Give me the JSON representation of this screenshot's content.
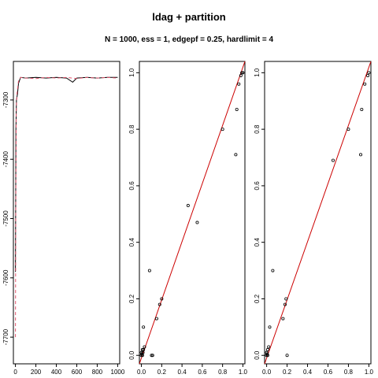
{
  "title": "ldag + partition",
  "subtitle": "N = 1000, ess = 1, edgepf = 0.25, hardlimit = 4",
  "colors": {
    "trace1": "#000000",
    "trace2": "#df536b",
    "fit": "#cc0000",
    "points": "#000000"
  },
  "chart_data": [
    {
      "type": "line",
      "panel": "trace",
      "xlim": [
        -20,
        1020
      ],
      "ylim": [
        -7745,
        -7235
      ],
      "xticks": [
        0,
        200,
        400,
        600,
        800,
        1000
      ],
      "yticks": [
        -7700,
        -7600,
        -7500,
        -7400,
        -7300
      ],
      "grid": false,
      "series": [
        {
          "style": "solid",
          "points": [
            [
              0,
              -7590
            ],
            [
              2,
              -7480
            ],
            [
              5,
              -7350
            ],
            [
              10,
              -7300
            ],
            [
              20,
              -7290
            ],
            [
              30,
              -7272
            ],
            [
              50,
              -7262
            ],
            [
              100,
              -7263
            ],
            [
              200,
              -7262
            ],
            [
              300,
              -7263
            ],
            [
              400,
              -7262
            ],
            [
              500,
              -7263
            ],
            [
              560,
              -7270
            ],
            [
              600,
              -7263
            ],
            [
              700,
              -7262
            ],
            [
              800,
              -7263
            ],
            [
              900,
              -7262
            ],
            [
              1000,
              -7262
            ]
          ]
        },
        {
          "style": "dashed",
          "points": [
            [
              0,
              -7700
            ],
            [
              3,
              -7500
            ],
            [
              8,
              -7320
            ],
            [
              15,
              -7290
            ],
            [
              30,
              -7268
            ],
            [
              50,
              -7262
            ],
            [
              100,
              -7263
            ],
            [
              200,
              -7264
            ],
            [
              300,
              -7262
            ],
            [
              400,
              -7263
            ],
            [
              500,
              -7262
            ],
            [
              600,
              -7264
            ],
            [
              700,
              -7262
            ],
            [
              800,
              -7263
            ],
            [
              900,
              -7262
            ],
            [
              1000,
              -7263
            ]
          ]
        }
      ]
    },
    {
      "type": "scatter",
      "panel": "comparison-1",
      "xlim": [
        -0.02,
        1.02
      ],
      "ylim": [
        -0.03,
        1.04
      ],
      "xticks": [
        0.0,
        0.2,
        0.4,
        0.6,
        0.8,
        1.0
      ],
      "yticks": [
        0.0,
        0.2,
        0.4,
        0.6,
        0.8,
        1.0
      ],
      "xtick_labels": [
        "0.0",
        "0.2",
        "0.4",
        "0.6",
        "0.8",
        "1.0"
      ],
      "ytick_labels": [
        "0.0",
        "0.2",
        "0.4",
        "0.6",
        "0.8",
        "1.0"
      ],
      "reference_line": [
        [
          -0.02,
          -0.03
        ],
        [
          1.02,
          1.04
        ]
      ],
      "points": [
        [
          0,
          0
        ],
        [
          0.005,
          0.005
        ],
        [
          0.01,
          0.0
        ],
        [
          0.0,
          0.01
        ],
        [
          0.015,
          0.01
        ],
        [
          0.01,
          0.02
        ],
        [
          0.02,
          0.02
        ],
        [
          0.03,
          0.03
        ],
        [
          0.02,
          0.1
        ],
        [
          0.08,
          0.3
        ],
        [
          0.1,
          0.0
        ],
        [
          0.11,
          0.0
        ],
        [
          0.15,
          0.13
        ],
        [
          0.18,
          0.18
        ],
        [
          0.2,
          0.2
        ],
        [
          0.46,
          0.53
        ],
        [
          0.55,
          0.47
        ],
        [
          0.8,
          0.8
        ],
        [
          0.93,
          0.71
        ],
        [
          0.94,
          0.87
        ],
        [
          0.96,
          0.96
        ],
        [
          0.98,
          0.99
        ],
        [
          0.99,
          1.0
        ],
        [
          1.0,
          1.0
        ]
      ]
    },
    {
      "type": "scatter",
      "panel": "comparison-2",
      "xlim": [
        -0.02,
        1.02
      ],
      "ylim": [
        -0.03,
        1.04
      ],
      "xticks": [
        0.0,
        0.2,
        0.4,
        0.6,
        0.8,
        1.0
      ],
      "yticks": [
        0.0,
        0.2,
        0.4,
        0.6,
        0.8,
        1.0
      ],
      "xtick_labels": [
        "0.0",
        "0.2",
        "0.4",
        "0.6",
        "0.8",
        "1.0"
      ],
      "ytick_labels": [
        "0.0",
        "0.2",
        "0.4",
        "0.6",
        "0.8",
        "1.0"
      ],
      "reference_line": [
        [
          -0.02,
          -0.03
        ],
        [
          1.02,
          1.04
        ]
      ],
      "points": [
        [
          0,
          0
        ],
        [
          0.005,
          0.005
        ],
        [
          0.01,
          0.0
        ],
        [
          0.0,
          0.01
        ],
        [
          0.01,
          0.02
        ],
        [
          0.02,
          0.03
        ],
        [
          0.03,
          0.1
        ],
        [
          0.06,
          0.3
        ],
        [
          0.16,
          0.13
        ],
        [
          0.18,
          0.18
        ],
        [
          0.19,
          0.2
        ],
        [
          0.2,
          0.0
        ],
        [
          0.65,
          0.69
        ],
        [
          0.8,
          0.8
        ],
        [
          0.92,
          0.71
        ],
        [
          0.93,
          0.87
        ],
        [
          0.96,
          0.96
        ],
        [
          0.99,
          0.99
        ],
        [
          1.0,
          1.0
        ]
      ]
    }
  ]
}
